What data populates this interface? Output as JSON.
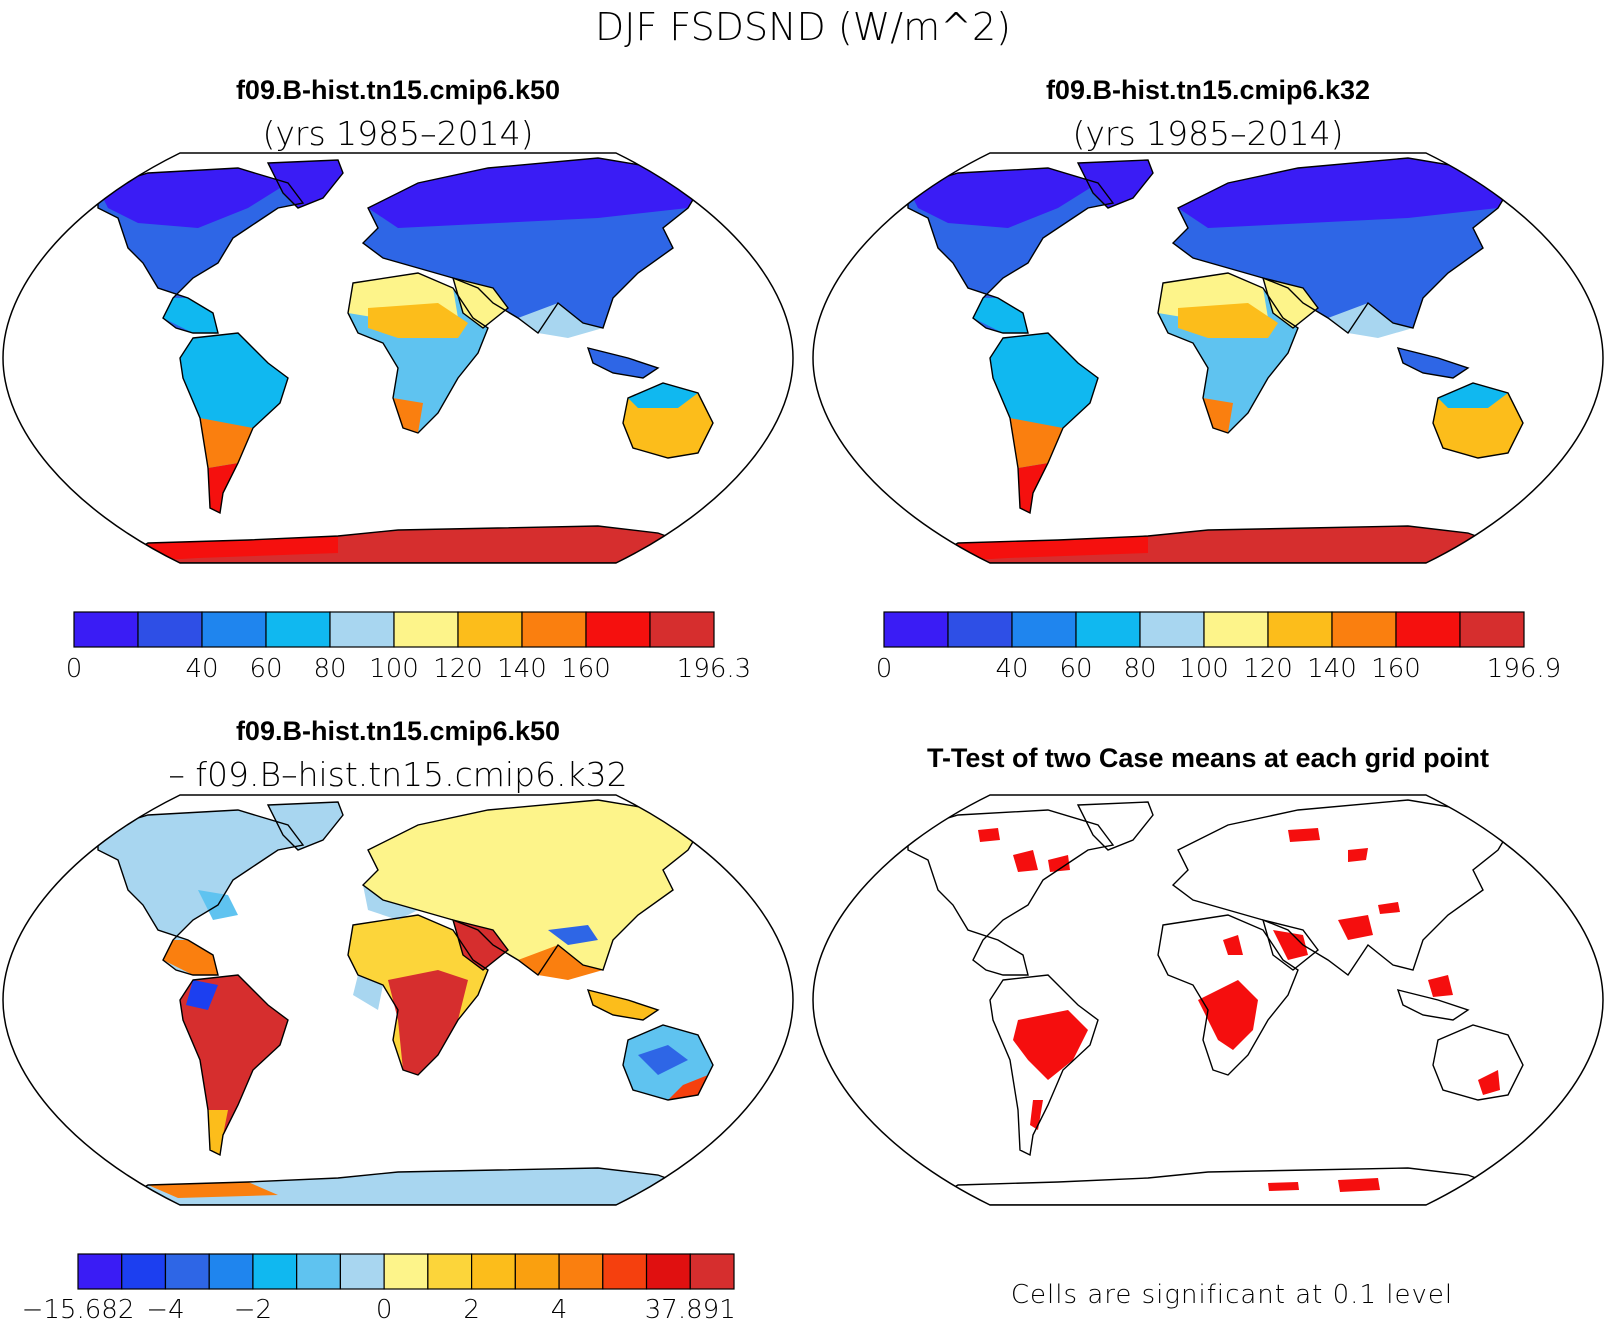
{
  "figure": {
    "title": "DJF FSDSND (W/m^2)"
  },
  "panels": [
    {
      "id": "case1",
      "title_line1": "f09.B-hist.tn15.cmip6.k50",
      "title_line2": "(yrs 1985–2014)",
      "colorbar": {
        "colors": [
          "#3a1cf5",
          "#2e4fe6",
          "#1f85ee",
          "#10b8f0",
          "#a8d6f0",
          "#fdf48a",
          "#fcbd1b",
          "#fa7f0f",
          "#f5100e",
          "#d62e2e"
        ],
        "labels": [
          "0",
          "",
          "40",
          "60",
          "80",
          "100",
          "120",
          "140",
          "160",
          "",
          "196.3"
        ]
      }
    },
    {
      "id": "case2",
      "title_line1": "f09.B-hist.tn15.cmip6.k32",
      "title_line2": "(yrs 1985–2014)",
      "colorbar": {
        "colors": [
          "#3a1cf5",
          "#2e4fe6",
          "#1f85ee",
          "#10b8f0",
          "#a8d6f0",
          "#fdf48a",
          "#fcbd1b",
          "#fa7f0f",
          "#f5100e",
          "#d62e2e"
        ],
        "labels": [
          "0",
          "",
          "40",
          "60",
          "80",
          "100",
          "120",
          "140",
          "160",
          "",
          "196.9"
        ]
      }
    },
    {
      "id": "diff",
      "title_line1": "f09.B-hist.tn15.cmip6.k50",
      "title_line2": "– f09.B–hist.tn15.cmip6.k32",
      "colorbar": {
        "colors": [
          "#3a1cf5",
          "#1c3ff0",
          "#2e66e6",
          "#1f85ee",
          "#10b8f0",
          "#5fc3f0",
          "#a8d6f0",
          "#fdf48a",
          "#fcd53a",
          "#fcbd1b",
          "#faa00f",
          "#fa7f0f",
          "#f5400e",
          "#e01010",
          "#d62e2e"
        ],
        "labels": [
          "−15.682",
          "",
          "−4",
          "",
          "−2",
          "",
          "",
          "0",
          "",
          "2",
          "",
          "4",
          "",
          "",
          "37.891"
        ]
      }
    },
    {
      "id": "ttest",
      "title_line1": "T-Test of two Case means at each grid point",
      "footer": "Cells are significant at 0.1 level"
    }
  ]
}
